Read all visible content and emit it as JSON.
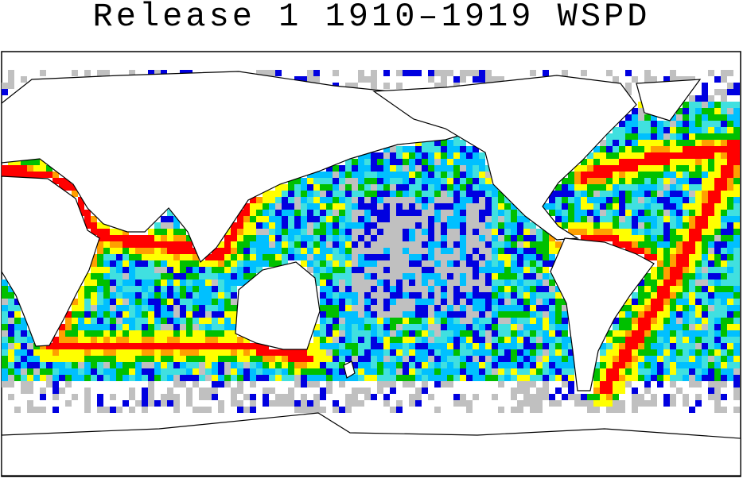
{
  "header": {
    "title": "Release 1 1910–1919 WSPD"
  }
}
